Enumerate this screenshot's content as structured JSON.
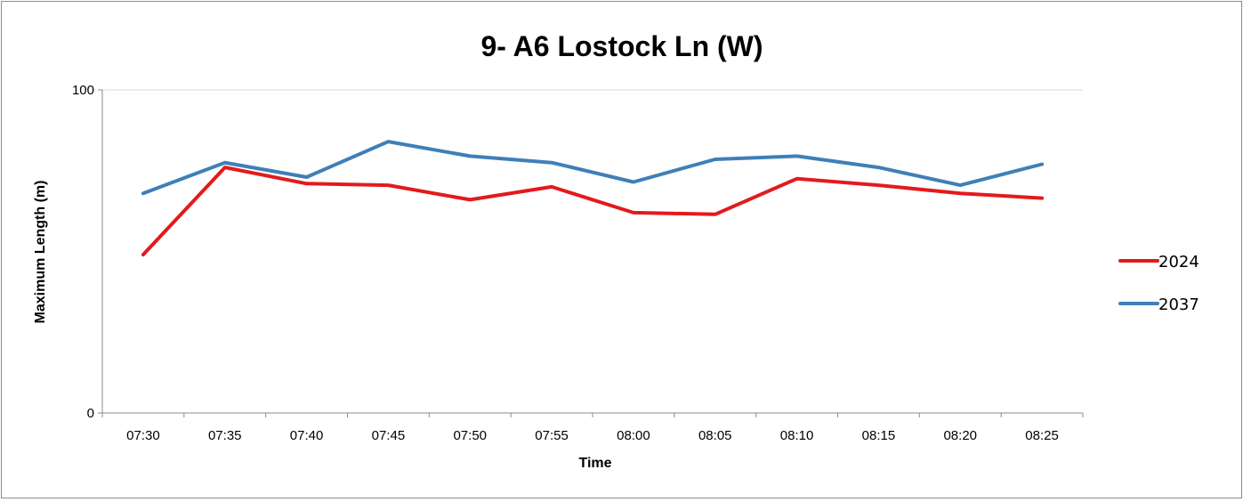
{
  "chart_data": {
    "type": "line",
    "title": "9- A6 Lostock Ln (W)",
    "xlabel": "Time",
    "ylabel": "Maximum Length (m)",
    "categories": [
      "07:30",
      "07:35",
      "07:40",
      "07:45",
      "07:50",
      "07:55",
      "08:00",
      "08:05",
      "08:10",
      "08:15",
      "08:20",
      "08:25"
    ],
    "ylim": [
      0,
      100
    ],
    "yticks": [
      "0",
      "100"
    ],
    "grid": "horizontal major gridline at 100",
    "legend_position": "right",
    "series": [
      {
        "name": "2024",
        "color": "#e31a1c",
        "values": [
          49,
          76,
          71,
          70.5,
          66,
          70,
          62,
          61.5,
          72.5,
          70.5,
          68,
          66.5
        ]
      },
      {
        "name": "2037",
        "color": "#3f7fb8",
        "values": [
          68,
          77.5,
          73,
          84,
          79.5,
          77.5,
          71.5,
          78.5,
          79.5,
          76,
          70.5,
          77
        ]
      }
    ]
  }
}
